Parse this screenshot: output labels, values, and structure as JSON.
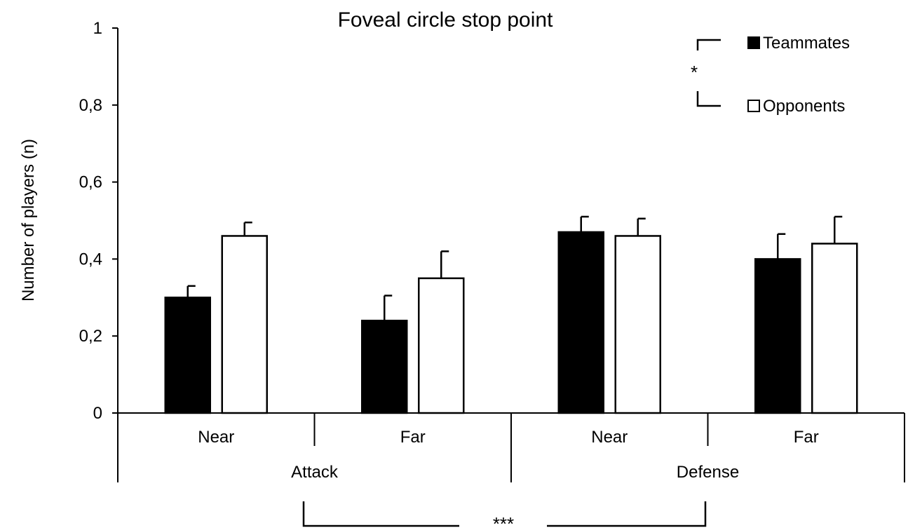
{
  "chart_data": {
    "type": "bar",
    "title": "Foveal circle stop point",
    "ylabel": "Number of players (n)",
    "xlabel": "",
    "ylim": [
      0,
      1
    ],
    "yticks": [
      0,
      0.2,
      0.4,
      0.6,
      0.8,
      1
    ],
    "ytick_labels": [
      "0",
      "0,2",
      "0,4",
      "0,6",
      "0,8",
      "1"
    ],
    "categories": [
      "Near",
      "Far",
      "Near",
      "Far"
    ],
    "groups": [
      {
        "label": "Attack",
        "categories": [
          "Near",
          "Far"
        ]
      },
      {
        "label": "Defense",
        "categories": [
          "Near",
          "Far"
        ]
      }
    ],
    "series": [
      {
        "name": "Teammates",
        "color": "#000000",
        "values": [
          0.3,
          0.24,
          0.47,
          0.4
        ],
        "errors": [
          0.03,
          0.065,
          0.04,
          0.065
        ]
      },
      {
        "name": "Opponents",
        "color": "#ffffff",
        "values": [
          0.46,
          0.35,
          0.46,
          0.44
        ],
        "errors": [
          0.035,
          0.07,
          0.045,
          0.07
        ]
      }
    ],
    "legend_position": "top-right",
    "grid": false,
    "significance": {
      "legend_marker": "*",
      "group_marker": "***"
    }
  }
}
